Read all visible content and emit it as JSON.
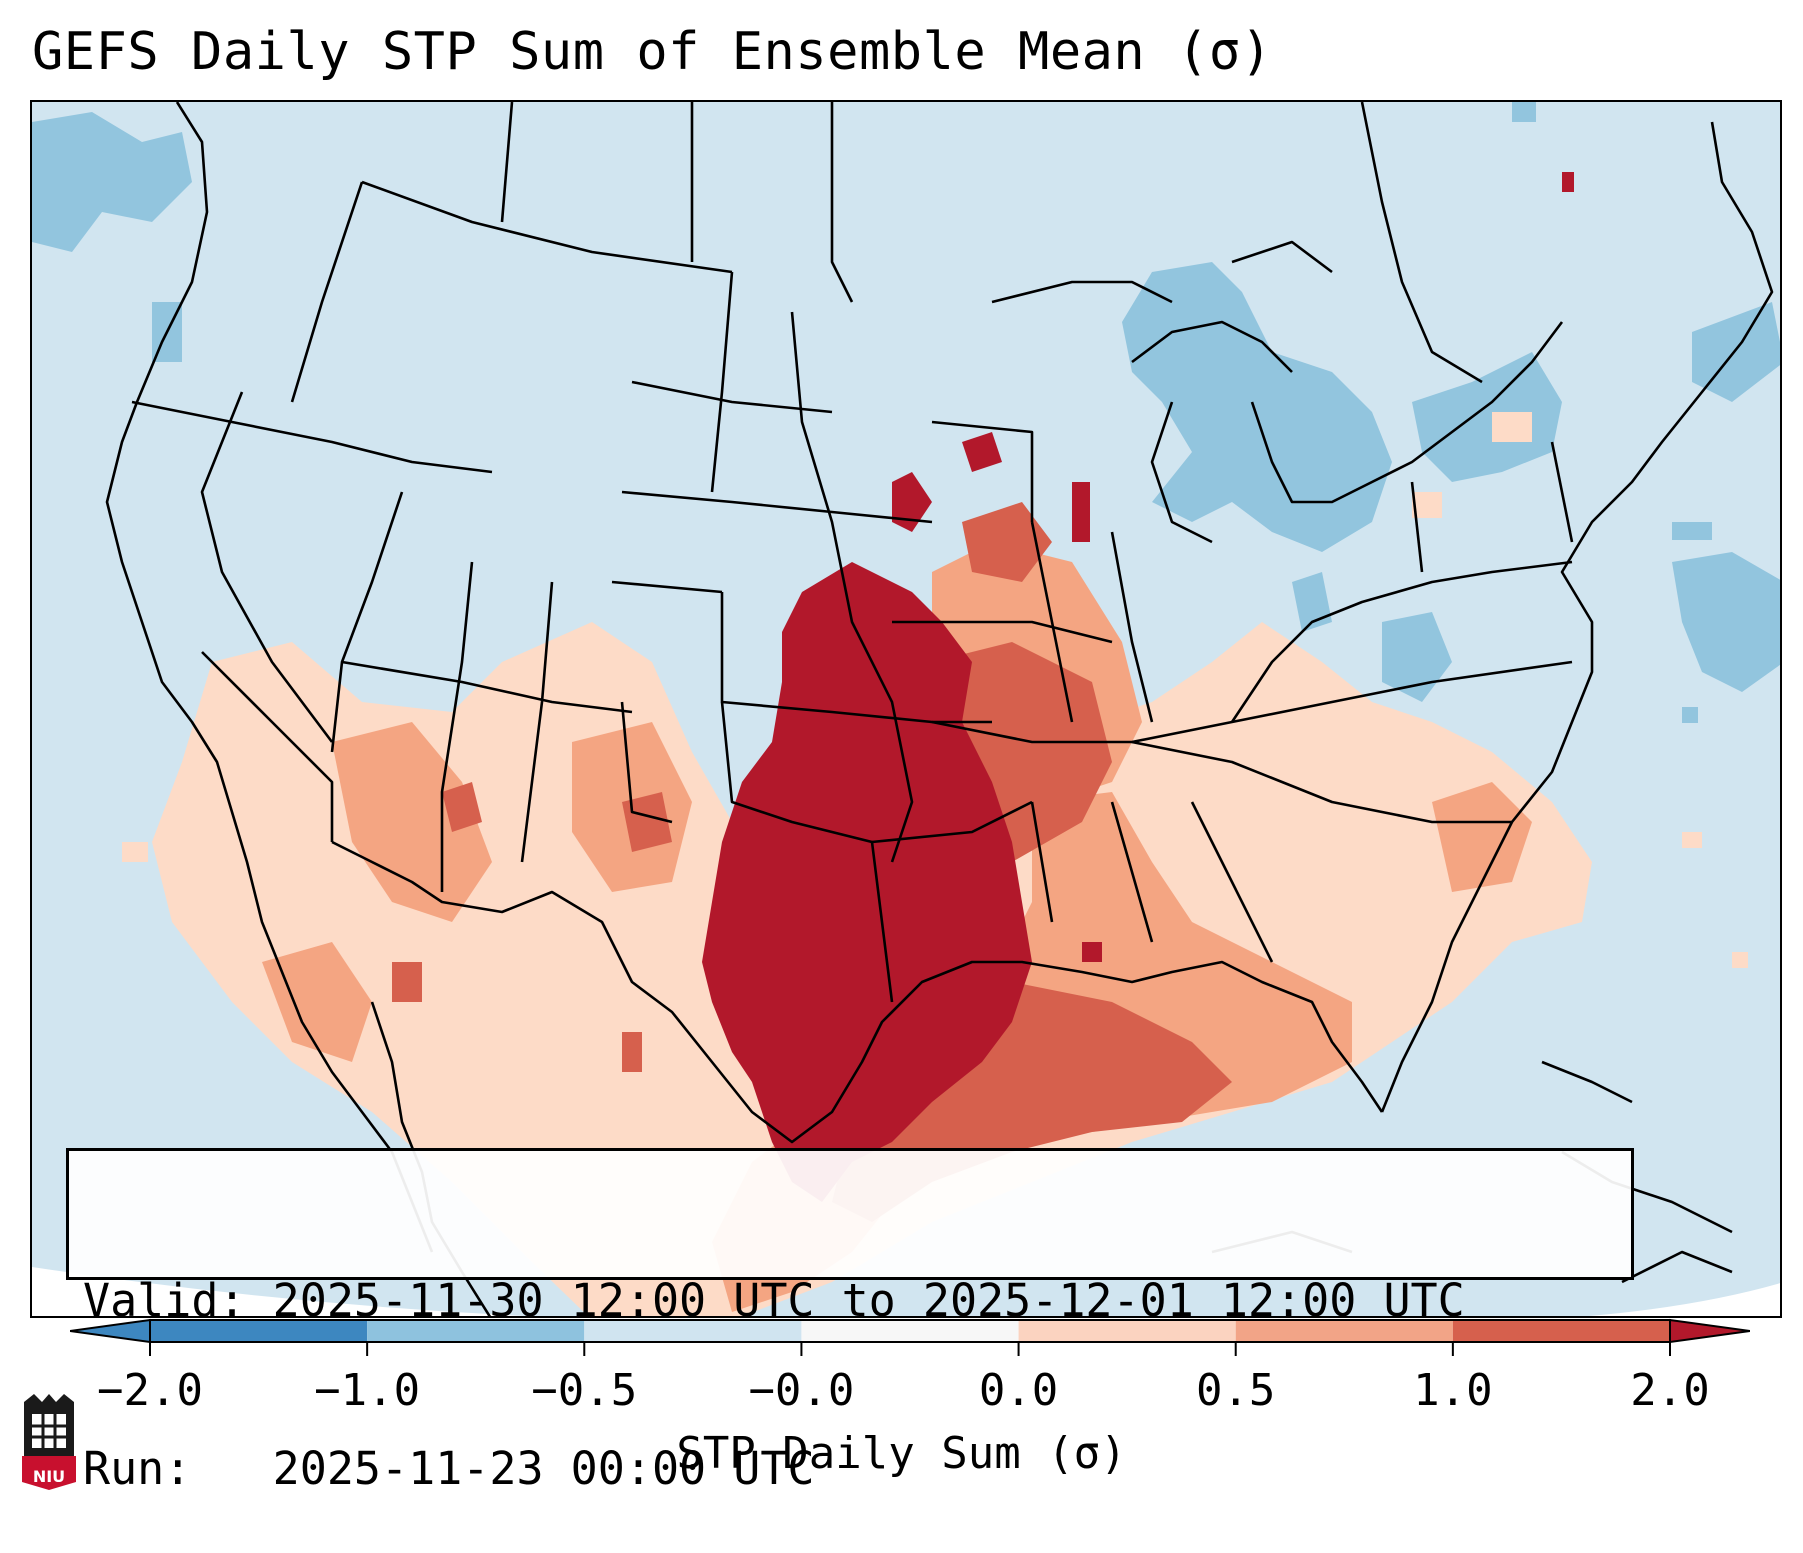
{
  "title": "GEFS Daily STP Sum of Ensemble Mean (σ)",
  "info": {
    "valid_label": "Valid:",
    "valid_value": "2025-11-30 12:00 UTC to 2025-12-01 12:00 UTC",
    "run_label": "Run:  ",
    "run_value": "2025-11-23 00:00 UTC"
  },
  "colorbar": {
    "label": "STP Daily Sum (σ)",
    "ticks": [
      "−2.0",
      "−1.0",
      "−0.5",
      "−0.0",
      "0.0",
      "0.5",
      "1.0",
      "2.0"
    ],
    "colors": [
      "#3d87c0",
      "#8ec2de",
      "#d0e4f0",
      "#f7f7f7",
      "#fbd3c0",
      "#f2a487",
      "#d6604d",
      "#b2182b"
    ]
  },
  "map_colors": {
    "background": "#d1e5f0",
    "neg_light": "#92c5de",
    "pos_light": "#fddbc7",
    "pos_mid": "#f4a582",
    "pos_strong": "#d6604d",
    "pos_max": "#b2182b"
  },
  "logo": {
    "text": "NIU",
    "color": "#c8102e"
  }
}
